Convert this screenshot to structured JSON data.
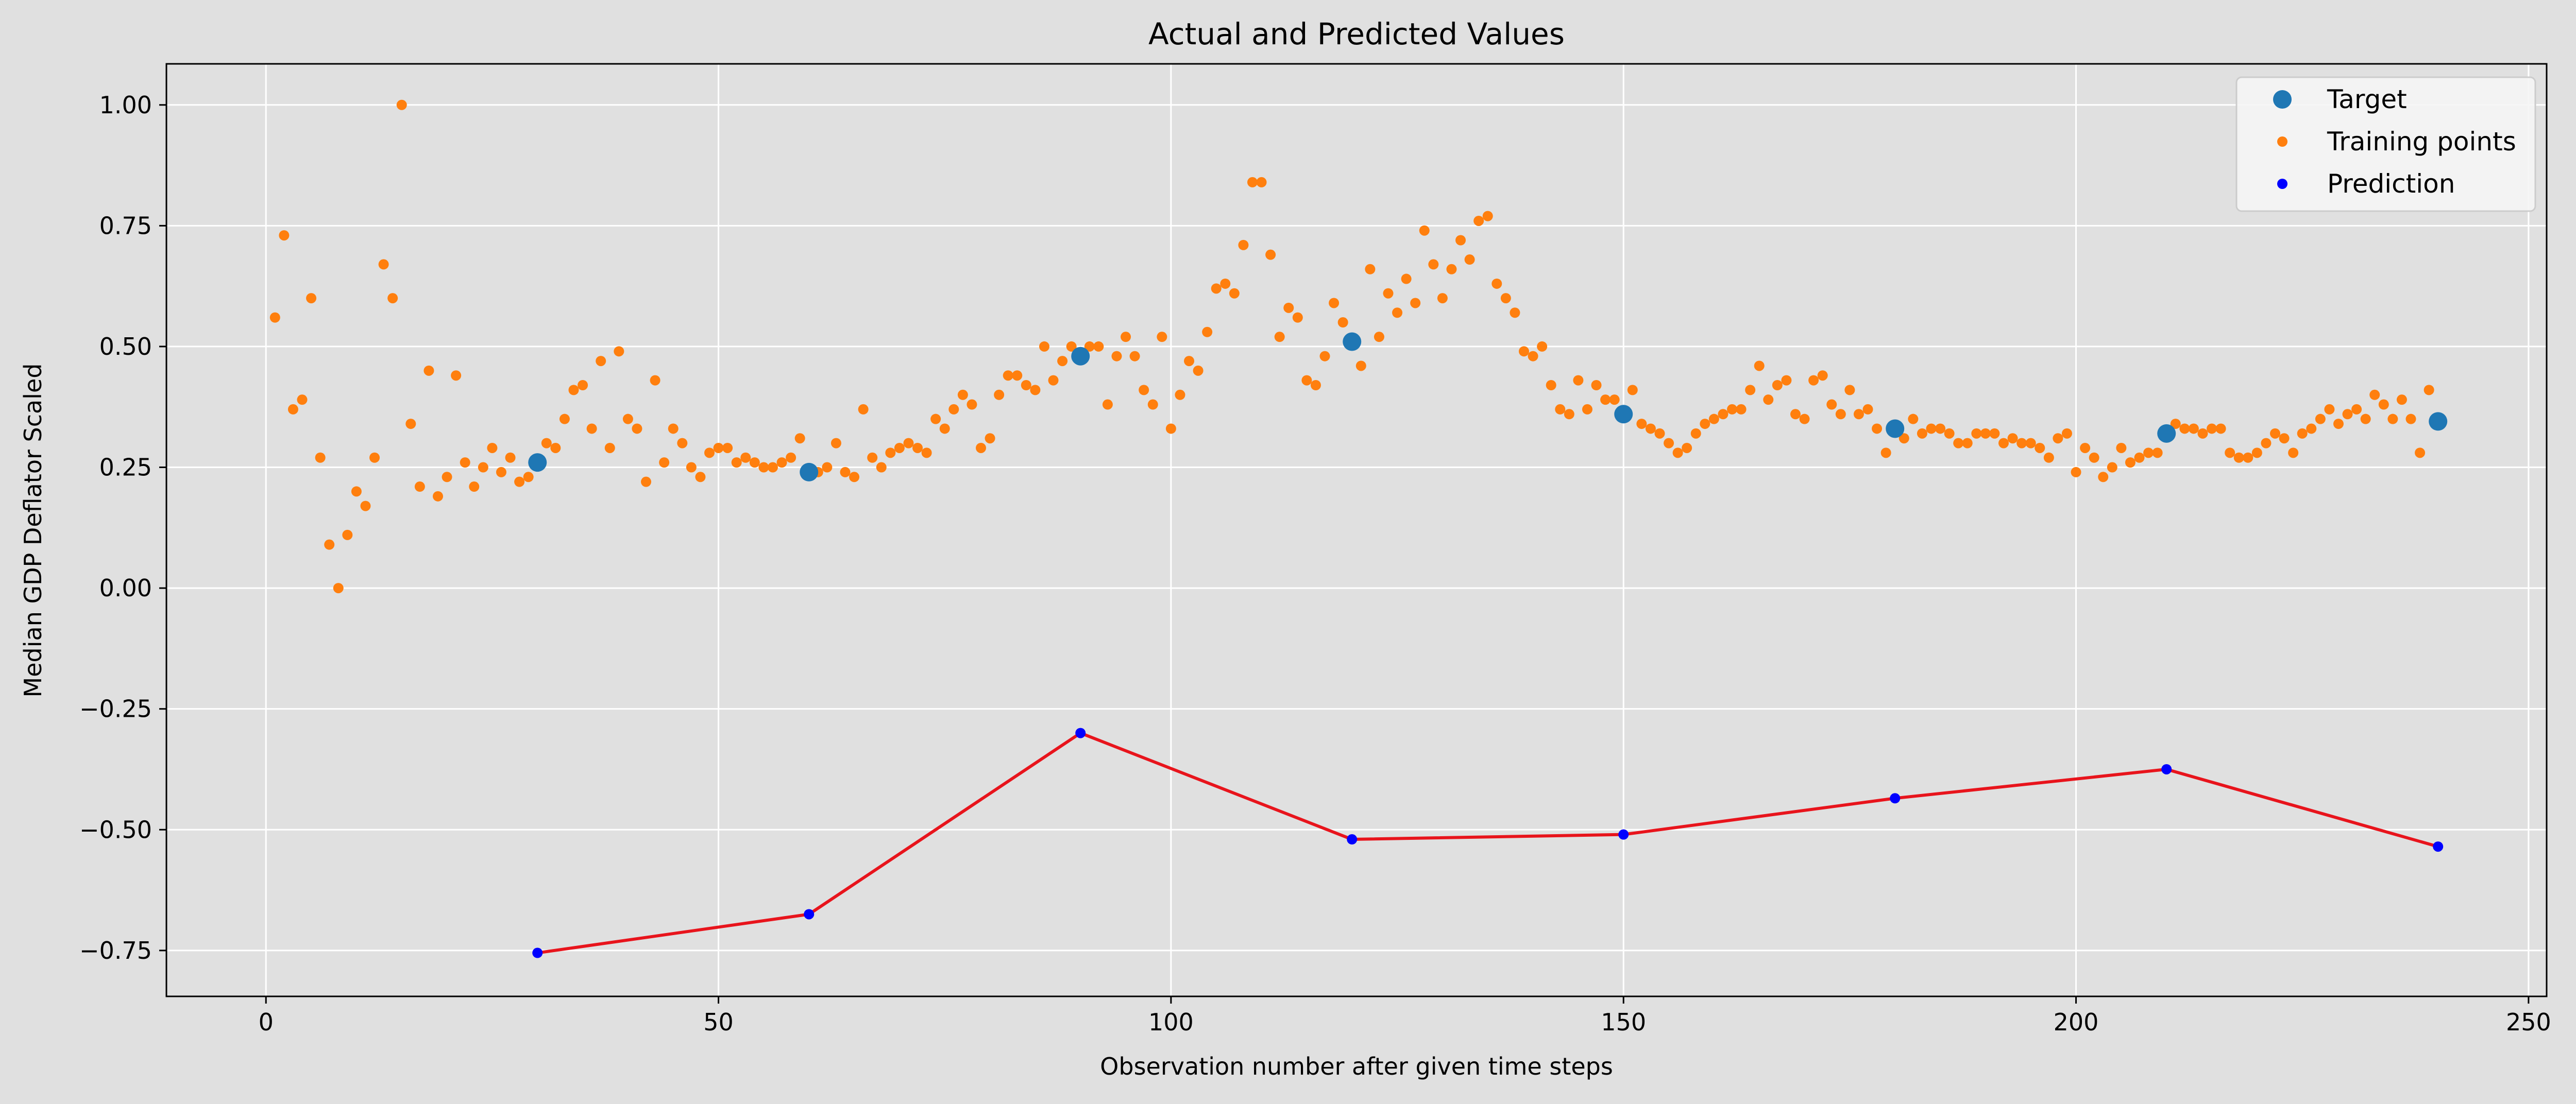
{
  "chart_data": {
    "type": "scatter",
    "title": "Actual and Predicted Values",
    "xlabel": "Observation number after given time steps",
    "ylabel": "Median GDP Deflator Scaled",
    "xlim": [
      -11,
      252
    ],
    "ylim": [
      -0.845,
      1.085
    ],
    "xticks": [
      0,
      50,
      100,
      150,
      200,
      250
    ],
    "yticks": [
      -0.75,
      -0.5,
      -0.25,
      0.0,
      0.25,
      0.5,
      0.75,
      1.0
    ],
    "ytick_labels": [
      "−0.75",
      "−0.50",
      "−0.25",
      "0.00",
      "0.25",
      "0.50",
      "0.75",
      "1.00"
    ],
    "grid": true,
    "legend_position": "top-right",
    "colors": {
      "background": "#e0e0e0",
      "target": "#1f77b4",
      "training": "#ff7f0e",
      "prediction": "#0000ff",
      "prediction_line": "#e8141c",
      "grid": "#ffffff"
    },
    "series": [
      {
        "name": "Target",
        "x": [
          30,
          60,
          90,
          120,
          150,
          180,
          210,
          240
        ],
        "y": [
          0.26,
          0.24,
          0.48,
          0.51,
          0.36,
          0.33,
          0.32,
          0.345
        ]
      },
      {
        "name": "Training points",
        "x": [
          1,
          2,
          3,
          4,
          5,
          6,
          7,
          8,
          9,
          10,
          11,
          12,
          13,
          14,
          15,
          16,
          17,
          18,
          19,
          20,
          21,
          22,
          23,
          24,
          25,
          26,
          27,
          28,
          29,
          31,
          32,
          33,
          34,
          35,
          36,
          37,
          38,
          39,
          40,
          41,
          42,
          43,
          44,
          45,
          46,
          47,
          48,
          49,
          50,
          51,
          52,
          53,
          54,
          55,
          56,
          57,
          58,
          59,
          61,
          62,
          63,
          64,
          65,
          66,
          67,
          68,
          69,
          70,
          71,
          72,
          73,
          74,
          75,
          76,
          77,
          78,
          79,
          80,
          81,
          82,
          83,
          84,
          85,
          86,
          87,
          88,
          89,
          91,
          92,
          93,
          94,
          95,
          96,
          97,
          98,
          99,
          100,
          101,
          102,
          103,
          104,
          105,
          106,
          107,
          108,
          109,
          110,
          111,
          112,
          113,
          114,
          115,
          116,
          117,
          118,
          119,
          121,
          122,
          123,
          124,
          125,
          126,
          127,
          128,
          129,
          130,
          131,
          132,
          133,
          134,
          135,
          136,
          137,
          138,
          139,
          140,
          141,
          142,
          143,
          144,
          145,
          146,
          147,
          148,
          149,
          151,
          152,
          153,
          154,
          155,
          156,
          157,
          158,
          159,
          160,
          161,
          162,
          163,
          164,
          165,
          166,
          167,
          168,
          169,
          170,
          171,
          172,
          173,
          174,
          175,
          176,
          177,
          178,
          179,
          181,
          182,
          183,
          184,
          185,
          186,
          187,
          188,
          189,
          190,
          191,
          192,
          193,
          194,
          195,
          196,
          197,
          198,
          199,
          200,
          201,
          202,
          203,
          204,
          205,
          206,
          207,
          208,
          209,
          211,
          212,
          213,
          214,
          215,
          216,
          217,
          218,
          219,
          220,
          221,
          222,
          223,
          224,
          225,
          226,
          227,
          228,
          229,
          230,
          231,
          232,
          233,
          234,
          235,
          236,
          237,
          238,
          239
        ],
        "y": [
          0.56,
          0.73,
          0.37,
          0.39,
          0.6,
          0.27,
          0.09,
          0.0,
          0.11,
          0.2,
          0.17,
          0.27,
          0.67,
          0.6,
          1.0,
          0.34,
          0.21,
          0.45,
          0.19,
          0.23,
          0.44,
          0.26,
          0.21,
          0.25,
          0.29,
          0.24,
          0.27,
          0.22,
          0.23,
          0.3,
          0.29,
          0.35,
          0.41,
          0.42,
          0.33,
          0.47,
          0.29,
          0.49,
          0.35,
          0.33,
          0.22,
          0.43,
          0.26,
          0.33,
          0.3,
          0.25,
          0.23,
          0.28,
          0.29,
          0.29,
          0.26,
          0.27,
          0.26,
          0.25,
          0.25,
          0.26,
          0.27,
          0.31,
          0.24,
          0.25,
          0.3,
          0.24,
          0.23,
          0.37,
          0.27,
          0.25,
          0.28,
          0.29,
          0.3,
          0.29,
          0.28,
          0.35,
          0.33,
          0.37,
          0.4,
          0.38,
          0.29,
          0.31,
          0.4,
          0.44,
          0.44,
          0.42,
          0.41,
          0.5,
          0.43,
          0.47,
          0.5,
          0.5,
          0.5,
          0.38,
          0.48,
          0.52,
          0.48,
          0.41,
          0.38,
          0.52,
          0.33,
          0.4,
          0.47,
          0.45,
          0.53,
          0.62,
          0.63,
          0.61,
          0.71,
          0.84,
          0.84,
          0.69,
          0.52,
          0.58,
          0.56,
          0.43,
          0.42,
          0.48,
          0.59,
          0.55,
          0.46,
          0.66,
          0.52,
          0.61,
          0.57,
          0.64,
          0.59,
          0.74,
          0.67,
          0.6,
          0.66,
          0.72,
          0.68,
          0.76,
          0.77,
          0.63,
          0.6,
          0.57,
          0.49,
          0.48,
          0.5,
          0.42,
          0.37,
          0.36,
          0.43,
          0.37,
          0.42,
          0.39,
          0.39,
          0.41,
          0.34,
          0.33,
          0.32,
          0.3,
          0.28,
          0.29,
          0.32,
          0.34,
          0.35,
          0.36,
          0.37,
          0.37,
          0.41,
          0.46,
          0.39,
          0.42,
          0.43,
          0.36,
          0.35,
          0.43,
          0.44,
          0.38,
          0.36,
          0.41,
          0.36,
          0.37,
          0.33,
          0.28,
          0.31,
          0.35,
          0.32,
          0.33,
          0.33,
          0.32,
          0.3,
          0.3,
          0.32,
          0.32,
          0.32,
          0.3,
          0.31,
          0.3,
          0.3,
          0.29,
          0.27,
          0.31,
          0.32,
          0.24,
          0.29,
          0.27,
          0.23,
          0.25,
          0.29,
          0.26,
          0.27,
          0.28,
          0.28,
          0.34,
          0.33,
          0.33,
          0.32,
          0.33,
          0.33,
          0.28,
          0.27,
          0.27,
          0.28,
          0.3,
          0.32,
          0.31,
          0.28,
          0.32,
          0.33,
          0.35,
          0.37,
          0.34,
          0.36,
          0.37,
          0.35,
          0.4,
          0.38,
          0.35,
          0.39,
          0.35,
          0.28,
          0.41
        ]
      },
      {
        "name": "Prediction",
        "x": [
          30,
          60,
          90,
          120,
          150,
          180,
          210,
          240
        ],
        "y": [
          -0.755,
          -0.675,
          -0.3,
          -0.52,
          -0.51,
          -0.435,
          -0.375,
          -0.535
        ]
      }
    ]
  }
}
